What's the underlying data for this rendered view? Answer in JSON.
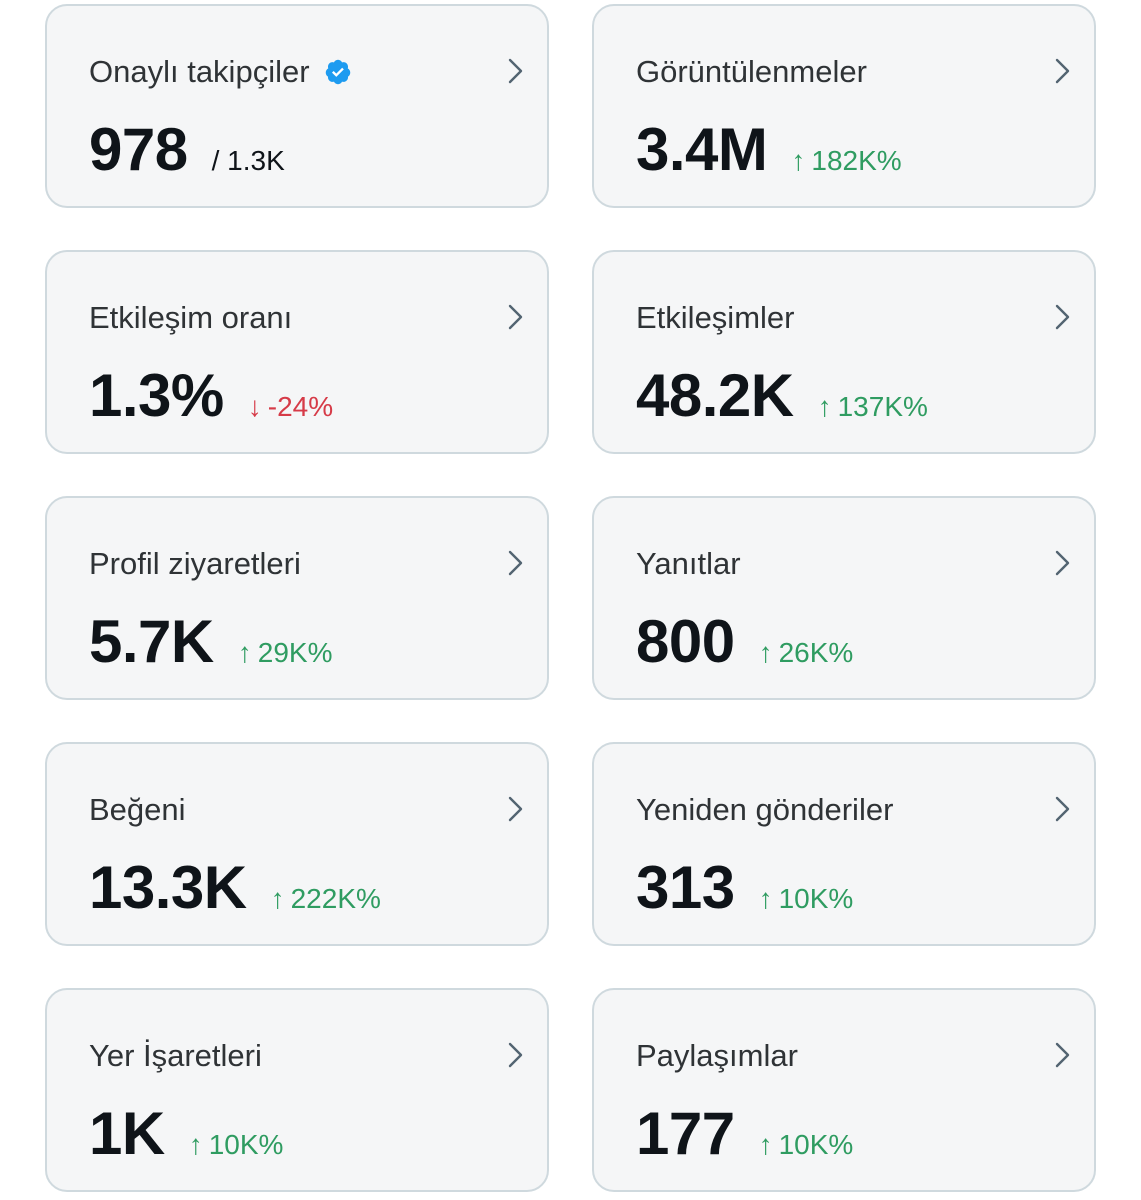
{
  "colors": {
    "card_background": "#f5f6f7",
    "card_border": "#cfd9de",
    "up": "#2f9c61",
    "down": "#d63b48",
    "verified": "#1d9bf0"
  },
  "cards": [
    {
      "title": "Onaylı takipçiler",
      "value": "978",
      "sub": "/ 1.3K",
      "icon": "verified-badge-icon"
    },
    {
      "title": "Görüntülenmeler",
      "value": "3.4M",
      "change": "182K%",
      "direction": "up"
    },
    {
      "title": "Etkileşim oranı",
      "value": "1.3%",
      "change": "-24%",
      "direction": "down"
    },
    {
      "title": "Etkileşimler",
      "value": "48.2K",
      "change": "137K%",
      "direction": "up"
    },
    {
      "title": "Profil ziyaretleri",
      "value": "5.7K",
      "change": "29K%",
      "direction": "up"
    },
    {
      "title": "Yanıtlar",
      "value": "800",
      "change": "26K%",
      "direction": "up"
    },
    {
      "title": "Beğeni",
      "value": "13.3K",
      "change": "222K%",
      "direction": "up"
    },
    {
      "title": "Yeniden gönderiler",
      "value": "313",
      "change": "10K%",
      "direction": "up"
    },
    {
      "title": "Yer İşaretleri",
      "value": "1K",
      "change": "10K%",
      "direction": "up"
    },
    {
      "title": "Paylaşımlar",
      "value": "177",
      "change": "10K%",
      "direction": "up"
    }
  ],
  "arrows": {
    "up": "↑",
    "down": "↓"
  }
}
